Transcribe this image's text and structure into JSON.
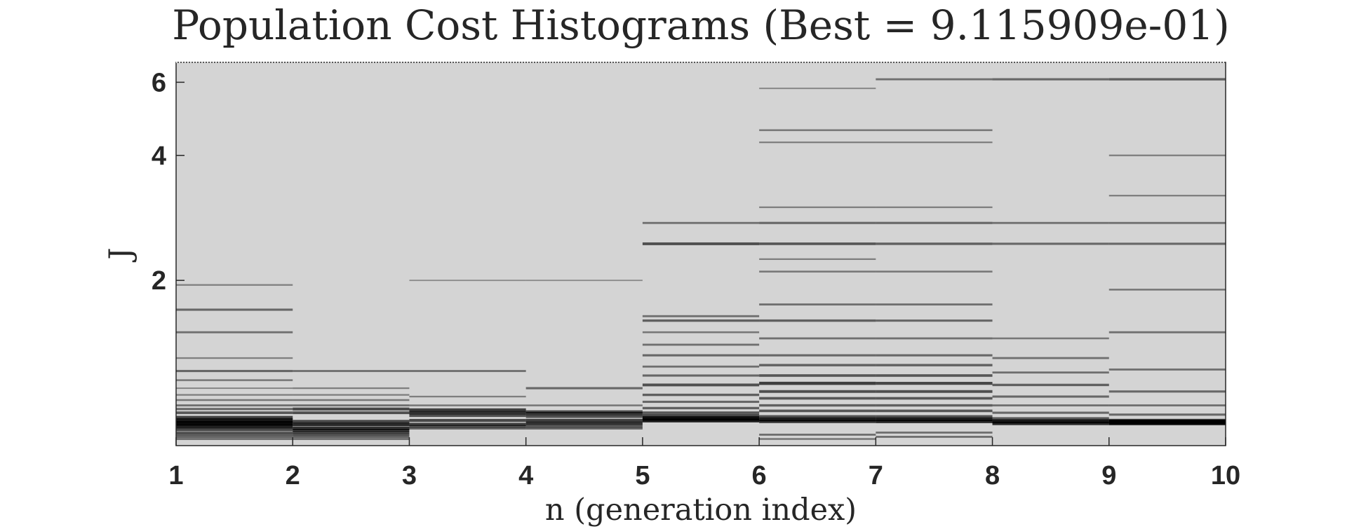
{
  "chart_data": {
    "type": "heatmap",
    "title": "Population Cost Histograms (Best = 9.115909e-01)",
    "xlabel": "n (generation index)",
    "ylabel": "J",
    "xlim": [
      1,
      10
    ],
    "ylim": [
      0.8,
      6.7
    ],
    "yscale": "log",
    "x_ticks": [
      1,
      2,
      3,
      4,
      5,
      6,
      7,
      8,
      9,
      10
    ],
    "y_ticks": [
      2,
      4,
      6
    ],
    "grid": false,
    "colormap": "gray-inverted",
    "colors": {
      "background": "#d4d4d4",
      "density_max": "#000000",
      "axis": "#262626"
    },
    "generation_ranges": [
      {
        "start": 1,
        "end": 2,
        "rows": [
          {
            "j": 0.905,
            "d": 0.95
          },
          {
            "j": 0.92,
            "d": 0.85
          },
          {
            "j": 0.89,
            "d": 0.8
          },
          {
            "j": 0.935,
            "d": 0.6
          },
          {
            "j": 0.875,
            "d": 0.55
          },
          {
            "j": 0.86,
            "d": 0.45
          },
          {
            "j": 0.85,
            "d": 0.4
          },
          {
            "j": 0.84,
            "d": 0.35
          },
          {
            "j": 0.96,
            "d": 0.45
          },
          {
            "j": 0.98,
            "d": 0.35
          },
          {
            "j": 1.0,
            "d": 0.3
          },
          {
            "j": 1.03,
            "d": 0.25
          },
          {
            "j": 1.06,
            "d": 0.2
          },
          {
            "j": 1.15,
            "d": 0.25
          },
          {
            "j": 1.21,
            "d": 0.35
          },
          {
            "j": 1.3,
            "d": 0.2
          },
          {
            "j": 1.5,
            "d": 0.3
          },
          {
            "j": 1.7,
            "d": 0.35
          },
          {
            "j": 1.95,
            "d": 0.2
          },
          {
            "j": 1.1,
            "d": 0.15
          },
          {
            "j": 0.83,
            "d": 0.3
          }
        ]
      },
      {
        "start": 2,
        "end": 3,
        "rows": [
          {
            "j": 0.9,
            "d": 0.75
          },
          {
            "j": 0.88,
            "d": 0.7
          },
          {
            "j": 0.87,
            "d": 0.6
          },
          {
            "j": 0.915,
            "d": 0.55
          },
          {
            "j": 0.86,
            "d": 0.5
          },
          {
            "j": 0.85,
            "d": 0.45
          },
          {
            "j": 0.84,
            "d": 0.35
          },
          {
            "j": 0.83,
            "d": 0.3
          },
          {
            "j": 0.96,
            "d": 0.5
          },
          {
            "j": 0.98,
            "d": 0.55
          },
          {
            "j": 1.0,
            "d": 0.3
          },
          {
            "j": 1.03,
            "d": 0.25
          },
          {
            "j": 1.06,
            "d": 0.2
          },
          {
            "j": 1.21,
            "d": 0.3
          },
          {
            "j": 1.1,
            "d": 0.2
          }
        ]
      },
      {
        "start": 3,
        "end": 4,
        "rows": [
          {
            "j": 0.96,
            "d": 0.7
          },
          {
            "j": 0.975,
            "d": 0.6
          },
          {
            "j": 0.945,
            "d": 0.5
          },
          {
            "j": 0.92,
            "d": 0.55
          },
          {
            "j": 0.9,
            "d": 0.6
          },
          {
            "j": 0.89,
            "d": 0.5
          },
          {
            "j": 0.88,
            "d": 0.35
          },
          {
            "j": 1.0,
            "d": 0.25
          },
          {
            "j": 1.05,
            "d": 0.2
          },
          {
            "j": 1.21,
            "d": 0.3
          },
          {
            "j": 2.0,
            "d": 0.12
          }
        ]
      },
      {
        "start": 4,
        "end": 5,
        "rows": [
          {
            "j": 0.955,
            "d": 0.65
          },
          {
            "j": 0.965,
            "d": 0.55
          },
          {
            "j": 0.94,
            "d": 0.5
          },
          {
            "j": 0.92,
            "d": 0.6
          },
          {
            "j": 0.905,
            "d": 0.7
          },
          {
            "j": 0.89,
            "d": 0.45
          },
          {
            "j": 0.88,
            "d": 0.35
          },
          {
            "j": 1.0,
            "d": 0.25
          },
          {
            "j": 1.1,
            "d": 0.35
          },
          {
            "j": 2.0,
            "d": 0.12
          }
        ]
      },
      {
        "start": 5,
        "end": 6,
        "rows": [
          {
            "j": 0.93,
            "d": 0.9
          },
          {
            "j": 0.92,
            "d": 0.8
          },
          {
            "j": 0.945,
            "d": 0.55
          },
          {
            "j": 0.96,
            "d": 0.45
          },
          {
            "j": 0.985,
            "d": 0.4
          },
          {
            "j": 1.02,
            "d": 0.35
          },
          {
            "j": 1.06,
            "d": 0.4
          },
          {
            "j": 1.12,
            "d": 0.5
          },
          {
            "j": 1.18,
            "d": 0.35
          },
          {
            "j": 1.24,
            "d": 0.3
          },
          {
            "j": 1.32,
            "d": 0.35
          },
          {
            "j": 1.4,
            "d": 0.3
          },
          {
            "j": 1.5,
            "d": 0.25
          },
          {
            "j": 1.6,
            "d": 0.4
          },
          {
            "j": 1.64,
            "d": 0.3
          },
          {
            "j": 2.45,
            "d": 0.5
          },
          {
            "j": 2.75,
            "d": 0.3
          }
        ]
      },
      {
        "start": 6,
        "end": 7,
        "rows": [
          {
            "j": 0.925,
            "d": 0.8
          },
          {
            "j": 0.915,
            "d": 0.65
          },
          {
            "j": 0.94,
            "d": 0.5
          },
          {
            "j": 0.97,
            "d": 0.45
          },
          {
            "j": 1.0,
            "d": 0.4
          },
          {
            "j": 1.04,
            "d": 0.45
          },
          {
            "j": 1.08,
            "d": 0.5
          },
          {
            "j": 1.13,
            "d": 0.6
          },
          {
            "j": 1.18,
            "d": 0.45
          },
          {
            "j": 1.25,
            "d": 0.4
          },
          {
            "j": 1.32,
            "d": 0.35
          },
          {
            "j": 1.45,
            "d": 0.3
          },
          {
            "j": 1.6,
            "d": 0.4
          },
          {
            "j": 1.75,
            "d": 0.3
          },
          {
            "j": 2.1,
            "d": 0.25
          },
          {
            "j": 2.25,
            "d": 0.2
          },
          {
            "j": 2.45,
            "d": 0.45
          },
          {
            "j": 2.75,
            "d": 0.35
          },
          {
            "j": 3.0,
            "d": 0.2
          },
          {
            "j": 4.3,
            "d": 0.2
          },
          {
            "j": 4.6,
            "d": 0.25
          },
          {
            "j": 5.8,
            "d": 0.15
          },
          {
            "j": 0.85,
            "d": 0.3
          },
          {
            "j": 0.83,
            "d": 0.25
          }
        ]
      },
      {
        "start": 7,
        "end": 8,
        "rows": [
          {
            "j": 0.925,
            "d": 0.8
          },
          {
            "j": 0.915,
            "d": 0.7
          },
          {
            "j": 0.94,
            "d": 0.5
          },
          {
            "j": 0.97,
            "d": 0.45
          },
          {
            "j": 1.0,
            "d": 0.4
          },
          {
            "j": 1.04,
            "d": 0.45
          },
          {
            "j": 1.08,
            "d": 0.5
          },
          {
            "j": 1.13,
            "d": 0.55
          },
          {
            "j": 1.18,
            "d": 0.45
          },
          {
            "j": 1.25,
            "d": 0.4
          },
          {
            "j": 1.32,
            "d": 0.35
          },
          {
            "j": 1.45,
            "d": 0.3
          },
          {
            "j": 1.6,
            "d": 0.35
          },
          {
            "j": 1.75,
            "d": 0.3
          },
          {
            "j": 2.1,
            "d": 0.25
          },
          {
            "j": 2.45,
            "d": 0.4
          },
          {
            "j": 2.75,
            "d": 0.35
          },
          {
            "j": 3.0,
            "d": 0.2
          },
          {
            "j": 4.3,
            "d": 0.2
          },
          {
            "j": 4.6,
            "d": 0.25
          },
          {
            "j": 6.1,
            "d": 0.3
          },
          {
            "j": 0.86,
            "d": 0.3
          },
          {
            "j": 0.84,
            "d": 0.3
          }
        ]
      },
      {
        "start": 8,
        "end": 9,
        "rows": [
          {
            "j": 0.915,
            "d": 0.85
          },
          {
            "j": 0.905,
            "d": 0.7
          },
          {
            "j": 0.93,
            "d": 0.45
          },
          {
            "j": 0.96,
            "d": 0.35
          },
          {
            "j": 1.0,
            "d": 0.3
          },
          {
            "j": 1.05,
            "d": 0.35
          },
          {
            "j": 1.12,
            "d": 0.4
          },
          {
            "j": 1.2,
            "d": 0.3
          },
          {
            "j": 1.3,
            "d": 0.3
          },
          {
            "j": 1.45,
            "d": 0.25
          },
          {
            "j": 2.45,
            "d": 0.35
          },
          {
            "j": 2.75,
            "d": 0.3
          },
          {
            "j": 6.1,
            "d": 0.35
          }
        ]
      },
      {
        "start": 9,
        "end": 10,
        "rows": [
          {
            "j": 0.912,
            "d": 0.98
          },
          {
            "j": 0.905,
            "d": 0.75
          },
          {
            "j": 0.92,
            "d": 0.6
          },
          {
            "j": 0.95,
            "d": 0.35
          },
          {
            "j": 1.0,
            "d": 0.3
          },
          {
            "j": 1.08,
            "d": 0.35
          },
          {
            "j": 1.22,
            "d": 0.3
          },
          {
            "j": 1.5,
            "d": 0.3
          },
          {
            "j": 1.9,
            "d": 0.25
          },
          {
            "j": 2.45,
            "d": 0.35
          },
          {
            "j": 2.75,
            "d": 0.3
          },
          {
            "j": 3.2,
            "d": 0.2
          },
          {
            "j": 4.0,
            "d": 0.2
          },
          {
            "j": 6.1,
            "d": 0.4
          }
        ]
      }
    ]
  }
}
